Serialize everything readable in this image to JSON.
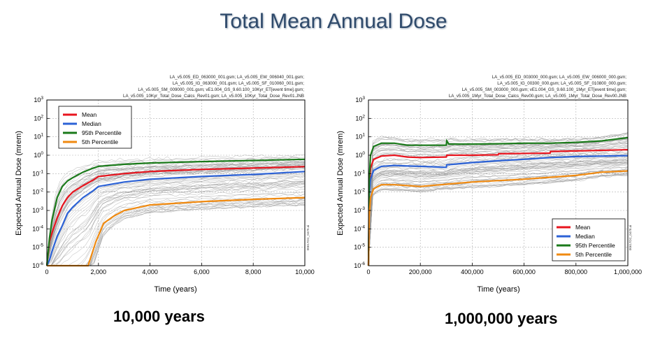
{
  "slide": {
    "title": "Total Mean Annual Dose"
  },
  "chart_data": [
    {
      "type": "line",
      "caption": "10,000 years",
      "header": [
        "LA_v5.005_ED_063000_001.gsm; LA_v5.005_EW_006040_001.gsm;",
        "LA_v5.005_IG_063000_001.gsm; LA_v5.005_SF_010060_001.gsm;",
        "LA_v5.005_SM_009000_001.gsm; vE1.004_GS_9.60.100_10Kyr_ET[event time].gsm;",
        "LA_v5.005_10Kyr_Total_Dose_Calcs_Rev01.gsm; LA_v5.005_10Kyr_Total_Dose_Rev01.JNB"
      ],
      "side_label": "00617DC_0479.ai",
      "xlabel": "Time (years)",
      "ylabel": "Expected Annual Dose (mrem)",
      "x_ticks": [
        0,
        2000,
        4000,
        6000,
        8000,
        10000
      ],
      "x_tick_labels": [
        "0",
        "2,000",
        "4,000",
        "6,000",
        "8,000",
        "10,000"
      ],
      "xlim": [
        0,
        10000
      ],
      "y_scale": "log",
      "ylim_exp": [
        -6,
        3
      ],
      "grid": true,
      "legend_position": "top-left",
      "series": [
        {
          "name": "Mean",
          "color": "#e8141e",
          "x": [
            0,
            100,
            200,
            400,
            600,
            800,
            1000,
            1400,
            1800,
            2000,
            3000,
            4000,
            6000,
            8000,
            10000
          ],
          "y": [
            1e-06,
            2e-05,
            6e-05,
            0.0004,
            0.0018,
            0.005,
            0.01,
            0.022,
            0.045,
            0.07,
            0.1,
            0.13,
            0.17,
            0.2,
            0.24
          ]
        },
        {
          "name": "Median",
          "color": "#2c62d6",
          "x": [
            0,
            100,
            200,
            400,
            600,
            800,
            1000,
            1400,
            1800,
            2000,
            3000,
            4000,
            6000,
            8000,
            10000
          ],
          "y": [
            1e-07,
            2e-06,
            6e-06,
            4e-05,
            0.00015,
            0.0007,
            0.0015,
            0.005,
            0.012,
            0.02,
            0.035,
            0.05,
            0.07,
            0.09,
            0.13
          ]
        },
        {
          "name": "95th Percentile",
          "color": "#1a7a1a",
          "x": [
            0,
            100,
            200,
            400,
            600,
            800,
            1000,
            1400,
            1800,
            2000,
            3000,
            4000,
            6000,
            8000,
            10000
          ],
          "y": [
            1e-06,
            3e-05,
            0.0003,
            0.005,
            0.02,
            0.04,
            0.06,
            0.12,
            0.2,
            0.25,
            0.32,
            0.38,
            0.45,
            0.52,
            0.6
          ]
        },
        {
          "name": "5th Percentile",
          "color": "#f08a10",
          "x": [
            0,
            500,
            900,
            1200,
            1600,
            1900,
            2200,
            2600,
            3000,
            4000,
            6000,
            8000,
            10000
          ],
          "y": [
            1e-07,
            1e-07,
            2e-07,
            3e-07,
            1e-06,
            2e-05,
            0.0002,
            0.0005,
            0.001,
            0.002,
            0.003,
            0.004,
            0.005
          ]
        }
      ]
    },
    {
      "type": "line",
      "caption": "1,000,000 years",
      "header": [
        "LA_v5.005_ED_003000_000.gsm; LA_v5.005_EW_006000_000.gsm;",
        "LA_v5.005_IG_00300_000.gsm; LA_v5.005_SF_010800_000.gsm;",
        "LA_v5.005_SM_003000_000.gsm; vE1.004_GS_9.60.100_1Myr_ET[event time].gsm;",
        "LA_v5.005_1Myr_Total_Dose_Calcs_Rev00.gsm; LA_v5.005_1Myr_Total_Dose_Rev00.JNB"
      ],
      "side_label": "00617DC_0478.ai",
      "xlabel": "Time (years)",
      "ylabel": "Expected Annual Dose (mrem)",
      "x_ticks": [
        0,
        200000,
        400000,
        600000,
        800000,
        1000000
      ],
      "x_tick_labels": [
        "0",
        "200,000",
        "400,000",
        "600,000",
        "800,000",
        "1,000,000"
      ],
      "xlim": [
        0,
        1000000
      ],
      "y_scale": "log",
      "ylim_exp": [
        -6,
        3
      ],
      "grid": true,
      "legend_position": "bottom-right",
      "series": [
        {
          "name": "Mean",
          "color": "#e8141e",
          "x": [
            0,
            3000,
            8000,
            20000,
            50000,
            100000,
            150000,
            200000,
            300000,
            302000,
            400000,
            500000,
            502000,
            700000,
            702000,
            800000,
            1000000
          ],
          "y": [
            1e-06,
            0.01,
            0.2,
            0.6,
            0.9,
            1.0,
            0.8,
            0.75,
            0.8,
            1.0,
            1.0,
            1.05,
            1.2,
            1.3,
            1.6,
            1.7,
            2.0
          ]
        },
        {
          "name": "Median",
          "color": "#2c62d6",
          "x": [
            0,
            3000,
            8000,
            20000,
            50000,
            100000,
            150000,
            200000,
            300000,
            302000,
            400000,
            500000,
            600000,
            700000,
            800000,
            1000000
          ],
          "y": [
            1e-06,
            0.005,
            0.05,
            0.15,
            0.25,
            0.28,
            0.26,
            0.25,
            0.22,
            0.3,
            0.4,
            0.5,
            0.6,
            0.75,
            0.85,
            0.95
          ]
        },
        {
          "name": "95th Percentile",
          "color": "#1a7a1a",
          "x": [
            0,
            3000,
            8000,
            20000,
            50000,
            100000,
            150000,
            200000,
            300000,
            302000,
            310000,
            400000,
            500000,
            600000,
            700000,
            800000,
            900000,
            1000000
          ],
          "y": [
            1e-06,
            0.05,
            1.0,
            3.0,
            4.5,
            4.5,
            3.5,
            3.5,
            3.5,
            6.0,
            4.0,
            4.0,
            4.2,
            4.5,
            4.5,
            5.0,
            6.0,
            9.0
          ]
        },
        {
          "name": "5th Percentile",
          "color": "#f08a10",
          "x": [
            0,
            3000,
            8000,
            20000,
            50000,
            100000,
            200000,
            400000,
            600000,
            800000,
            900000,
            1000000
          ],
          "y": [
            1e-06,
            0.0005,
            0.005,
            0.015,
            0.025,
            0.025,
            0.02,
            0.035,
            0.05,
            0.08,
            0.12,
            0.14
          ]
        }
      ]
    }
  ]
}
